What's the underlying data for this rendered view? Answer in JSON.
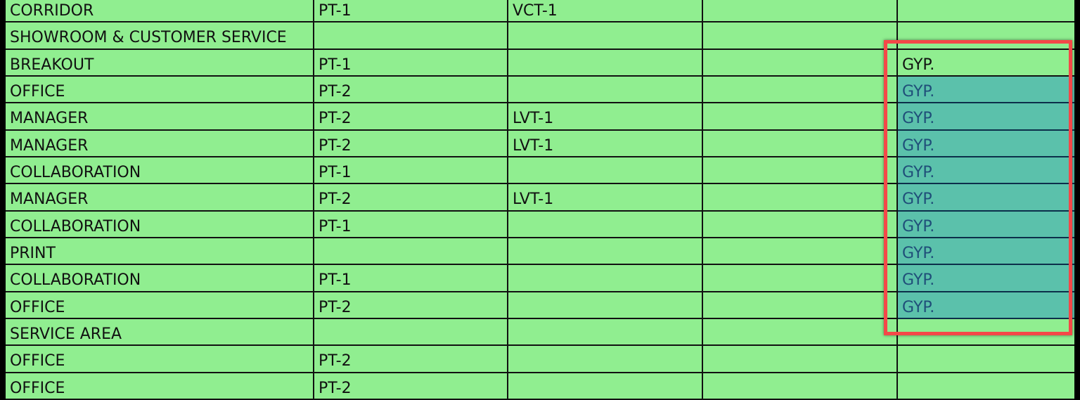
{
  "highlight_color": "#f44848",
  "selection_fill": "#5bc1ab",
  "cell_fill": "#90ee90",
  "rows": [
    {
      "cells": [
        "CORRIDOR",
        "PT-1",
        "VCT-1",
        "",
        ""
      ],
      "selected": false
    },
    {
      "cells": [
        "SHOWROOM & CUSTOMER SERVICE",
        "",
        "",
        "",
        ""
      ],
      "selected": false
    },
    {
      "cells": [
        "BREAKOUT",
        "PT-1",
        "",
        "",
        "GYP."
      ],
      "selected": false
    },
    {
      "cells": [
        "OFFICE",
        "PT-2",
        "",
        "",
        "GYP."
      ],
      "selected": true
    },
    {
      "cells": [
        "MANAGER",
        "PT-2",
        "LVT-1",
        "",
        "GYP."
      ],
      "selected": true
    },
    {
      "cells": [
        "MANAGER",
        "PT-2",
        "LVT-1",
        "",
        "GYP."
      ],
      "selected": true
    },
    {
      "cells": [
        "COLLABORATION",
        "PT-1",
        "",
        "",
        "GYP."
      ],
      "selected": true
    },
    {
      "cells": [
        "MANAGER",
        "PT-2",
        "LVT-1",
        "",
        "GYP."
      ],
      "selected": true
    },
    {
      "cells": [
        "COLLABORATION",
        "PT-1",
        "",
        "",
        "GYP."
      ],
      "selected": true
    },
    {
      "cells": [
        "PRINT",
        "",
        "",
        "",
        "GYP."
      ],
      "selected": true
    },
    {
      "cells": [
        "COLLABORATION",
        "PT-1",
        "",
        "",
        "GYP."
      ],
      "selected": true
    },
    {
      "cells": [
        "OFFICE",
        "PT-2",
        "",
        "",
        "GYP."
      ],
      "selected": true
    },
    {
      "cells": [
        "SERVICE AREA",
        "",
        "",
        "",
        ""
      ],
      "selected": false
    },
    {
      "cells": [
        "OFFICE",
        "PT-2",
        "",
        "",
        ""
      ],
      "selected": false
    },
    {
      "cells": [
        "OFFICE",
        "PT-2",
        "",
        "",
        ""
      ],
      "selected": false
    }
  ]
}
